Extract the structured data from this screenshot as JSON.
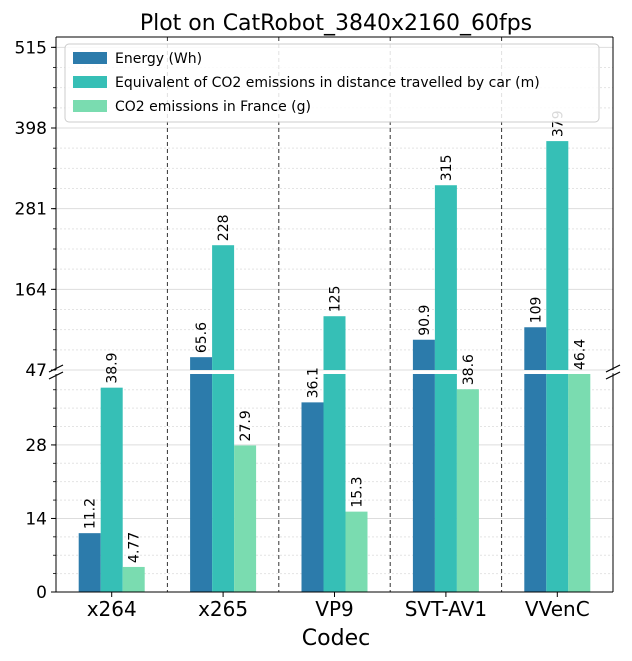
{
  "chart_data": {
    "type": "bar",
    "title": "Plot on CatRobot_3840x2160_60fps",
    "xlabel": "Codec",
    "ylabel": "",
    "categories": [
      "x264",
      "x265",
      "VP9",
      "SVT-AV1",
      "VVenC"
    ],
    "series": [
      {
        "name": "Energy (Wh)",
        "color": "#2c7bab",
        "values": [
          11.2,
          65.6,
          36.1,
          90.9,
          109
        ],
        "labels": [
          "11.2",
          "65.6",
          "36.1",
          "90.9",
          "109"
        ]
      },
      {
        "name": "Equivalent of CO2 emissions in distance travelled by car (m)",
        "color": "#36bfb6",
        "values": [
          38.9,
          228,
          125,
          315,
          379
        ],
        "labels": [
          "38.9",
          "228",
          "125",
          "315",
          "379"
        ]
      },
      {
        "name": "CO2 emissions in France (g)",
        "color": "#7adcb0",
        "values": [
          4.77,
          27.9,
          15.3,
          38.6,
          46.4
        ],
        "labels": [
          "4.77",
          "27.9",
          "15.3",
          "38.6",
          "46.4"
        ]
      }
    ],
    "broken_axis": true,
    "lower_ylim": [
      0,
      41.5
    ],
    "upper_ylim": [
      47,
      530
    ],
    "lower_yticks": [
      "0",
      "14",
      "28",
      "47"
    ],
    "upper_yticks": [
      "164",
      "281",
      "398",
      "515"
    ],
    "grid": true,
    "legend_position": "top-left"
  }
}
